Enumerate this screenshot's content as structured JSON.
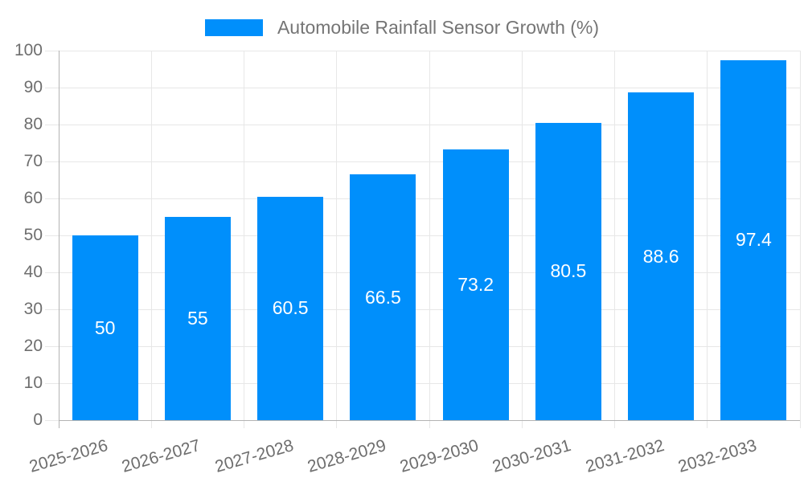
{
  "legend": {
    "label": "Automobile Rainfall Sensor Growth (%)"
  },
  "colors": {
    "bar": "#008FFB",
    "grid": "#e7e7e7",
    "axis": "#b3b3b3",
    "axis_label": "#6e6e6e",
    "legend_text": "#757575",
    "value_label": "#ffffff",
    "background": "#ffffff"
  },
  "chart_data": {
    "type": "bar",
    "title": "Automobile Rainfall Sensor Growth (%)",
    "categories": [
      "2025-2026",
      "2026-2027",
      "2027-2028",
      "2028-2029",
      "2029-2030",
      "2030-2031",
      "2031-2032",
      "2032-2033"
    ],
    "series": [
      {
        "name": "Automobile Rainfall Sensor Growth (%)",
        "values": [
          50,
          55,
          60.5,
          66.5,
          73.2,
          80.5,
          88.6,
          97.4
        ]
      }
    ],
    "value_labels": [
      "50",
      "55",
      "60.5",
      "66.5",
      "73.2",
      "80.5",
      "88.6",
      "97.4"
    ],
    "xlabel": "",
    "ylabel": "",
    "ylim": [
      0,
      100
    ],
    "ytick_step": 10,
    "ytick_labels": [
      "0",
      "10",
      "20",
      "30",
      "40",
      "50",
      "60",
      "70",
      "80",
      "90",
      "100"
    ],
    "grid": true,
    "legend_position": "top"
  }
}
